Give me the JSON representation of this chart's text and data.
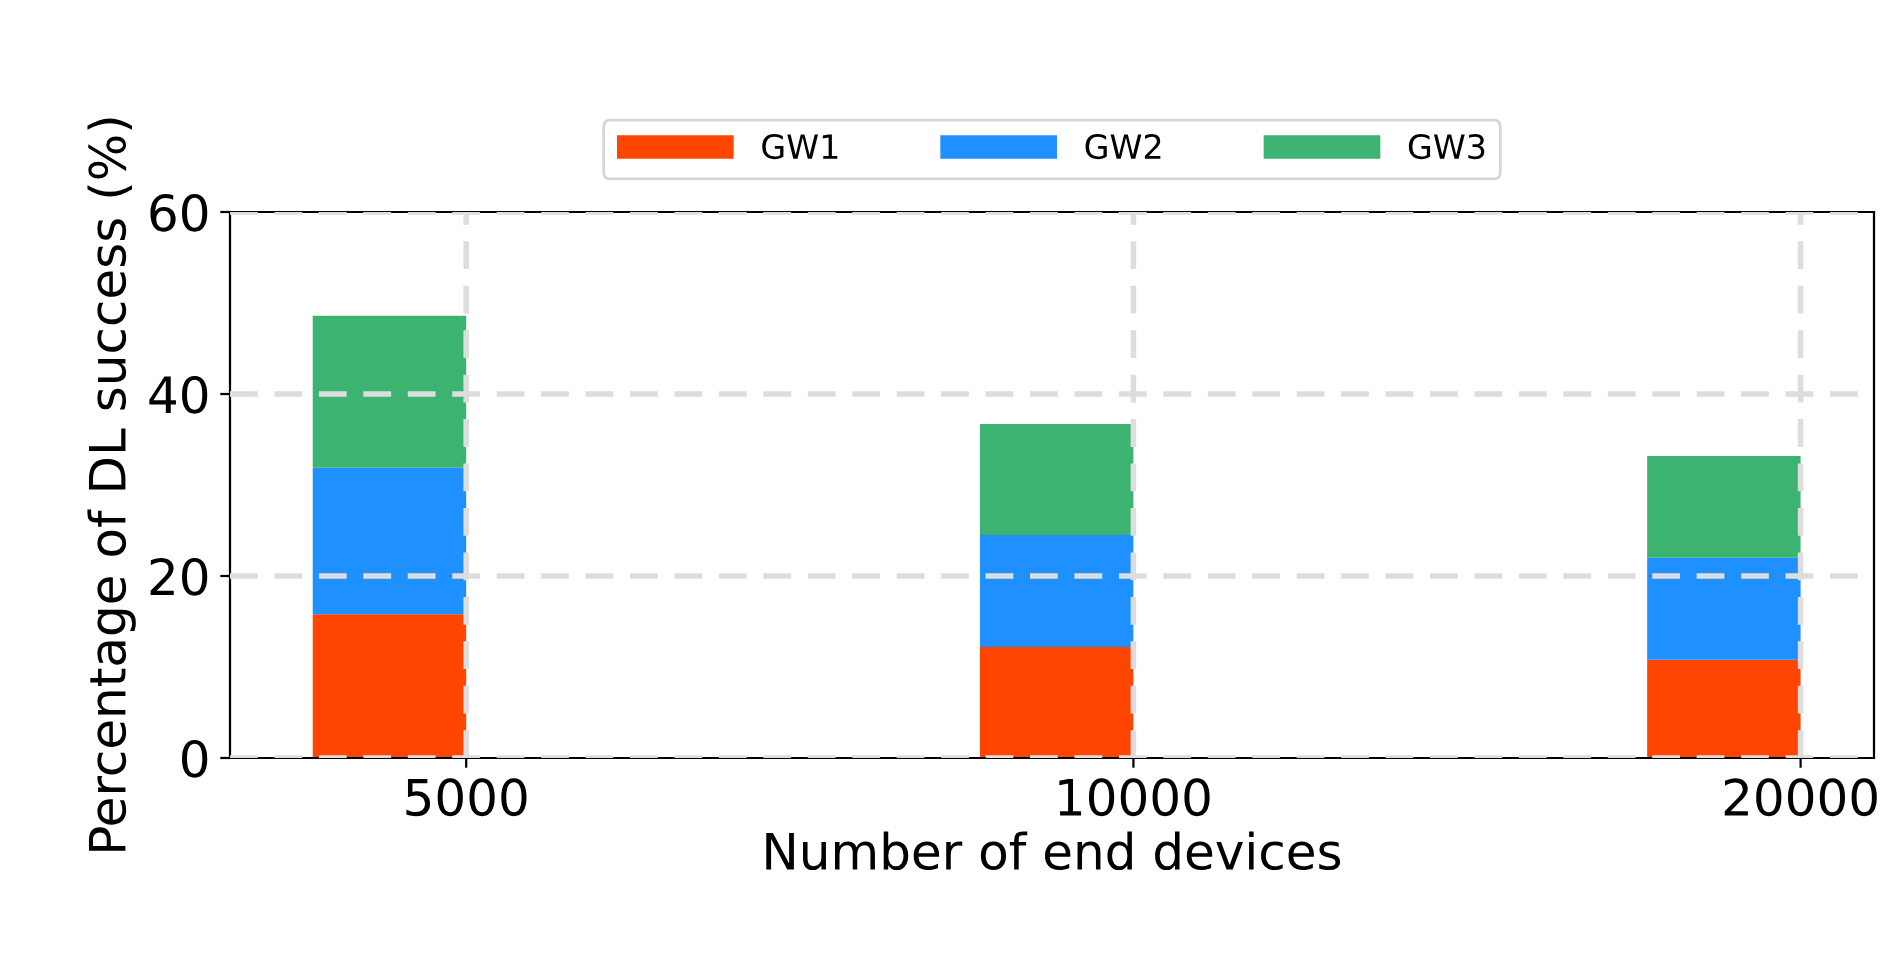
{
  "chart_data": {
    "type": "bar",
    "stacked": true,
    "xlabel": "Number of end devices",
    "ylabel": "Percentage of DL success (%)",
    "categories": [
      "5000",
      "10000",
      "20000"
    ],
    "series": [
      {
        "name": "GW1",
        "color": "#ff4500",
        "values": [
          15.8,
          12.2,
          10.8
        ]
      },
      {
        "name": "GW2",
        "color": "#1e90ff",
        "values": [
          16.1,
          12.3,
          11.2
        ]
      },
      {
        "name": "GW3",
        "color": "#3cb371",
        "values": [
          16.7,
          12.2,
          11.2
        ]
      }
    ],
    "ylim": [
      0,
      60
    ],
    "yticks": [
      0,
      20,
      40,
      60
    ],
    "grid": true,
    "legend": "top"
  }
}
